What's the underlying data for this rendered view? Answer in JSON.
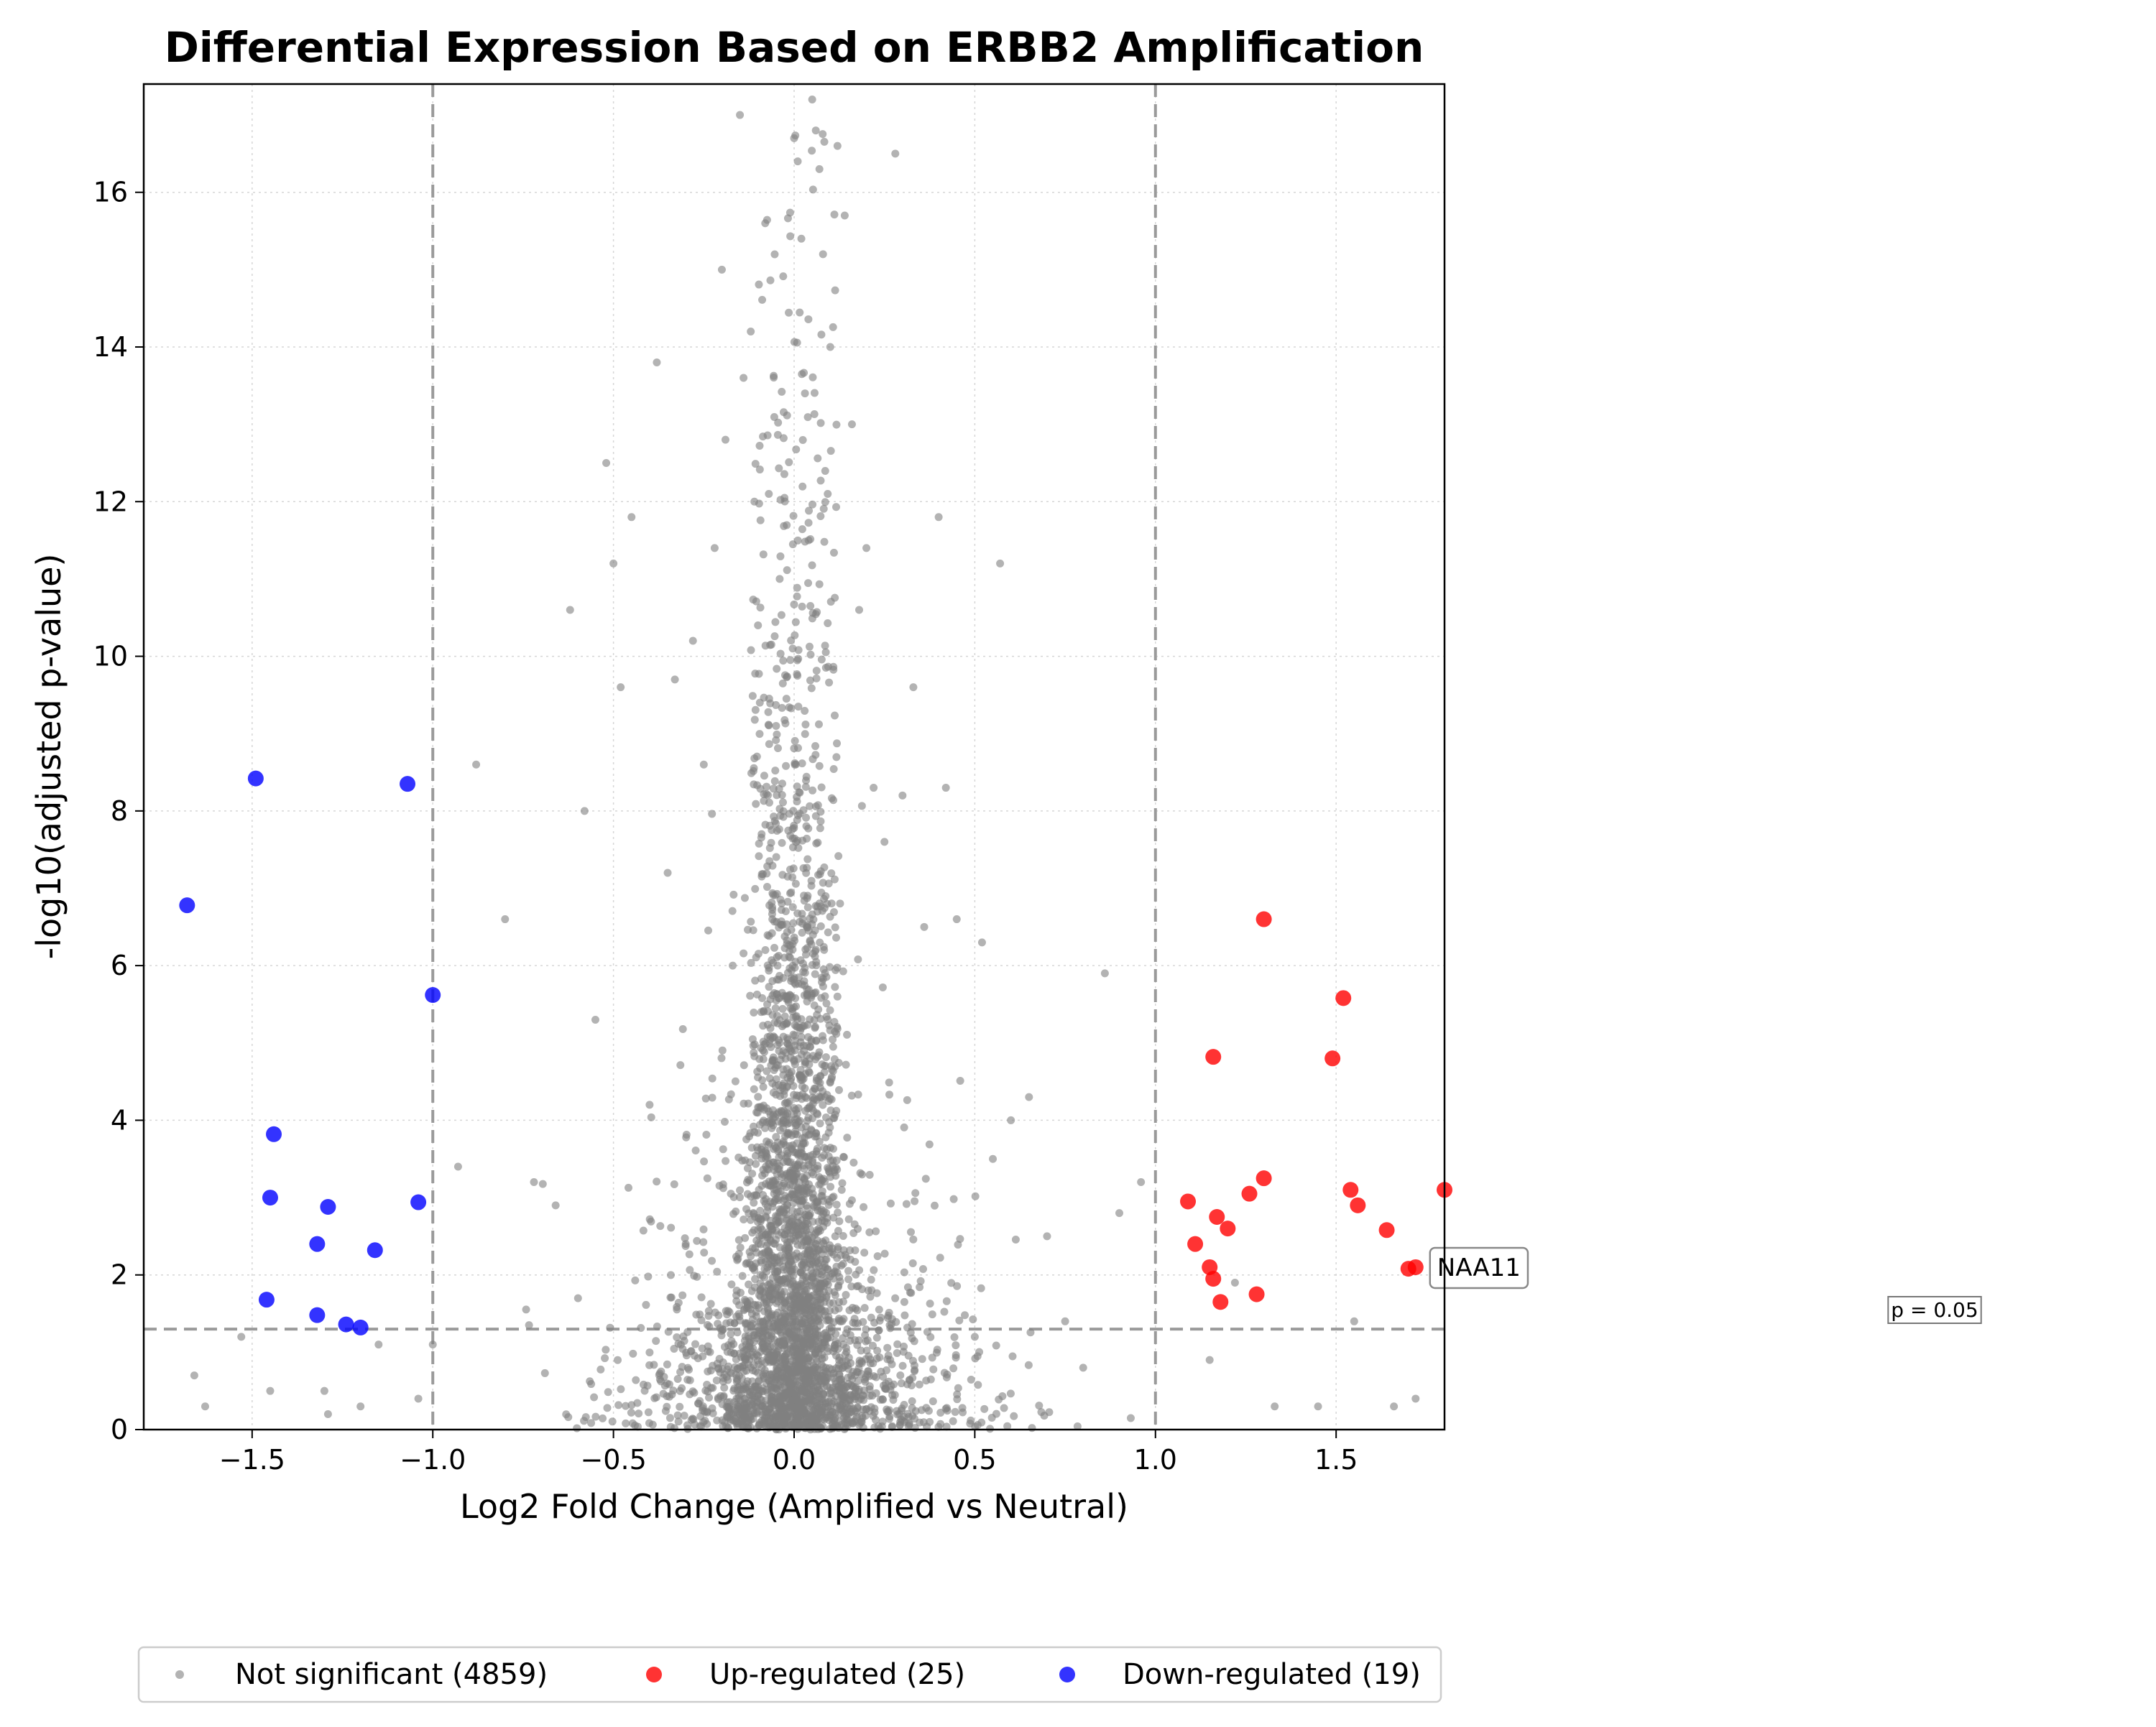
{
  "chart_data": {
    "type": "scatter",
    "title": "Differential Expression Based on ERBB2 Amplification",
    "xlabel": "Log2 Fold Change (Amplified vs Neutral)",
    "ylabel": "-log10(adjusted p-value)",
    "xlim": [
      -1.8,
      1.8
    ],
    "ylim": [
      0,
      17.4
    ],
    "x_ticks": [
      -1.5,
      -1.0,
      -0.5,
      0.0,
      0.5,
      1.0,
      1.5
    ],
    "x_tick_labels": [
      "−1.5",
      "−1.0",
      "−0.5",
      "0.0",
      "0.5",
      "1.0",
      "1.5"
    ],
    "y_ticks": [
      0,
      2,
      4,
      6,
      8,
      10,
      12,
      14,
      16
    ],
    "y_tick_labels": [
      "0",
      "2",
      "4",
      "6",
      "8",
      "10",
      "12",
      "14",
      "16"
    ],
    "grid": true,
    "legend_placement": "bottom-center, below plot",
    "threshold_lines": {
      "fold_change": [
        -1.0,
        1.0
      ],
      "p_value_line_y": 1.3,
      "p_value_label": "p = 0.05"
    },
    "series": [
      {
        "name": "Not significant (4859)",
        "color": "#808080",
        "count_shown": 4859,
        "x": [
          -1.66,
          -1.63,
          -1.53,
          -1.45,
          -1.3,
          -1.29,
          -1.2,
          -1.15,
          -1.04,
          -1.0,
          -0.93,
          -0.88,
          -0.8,
          -0.72,
          -0.66,
          -0.62,
          -0.58,
          -0.55,
          -0.52,
          -0.5,
          -0.48,
          -0.45,
          -0.4,
          -0.38,
          -0.35,
          -0.33,
          -0.3,
          -0.28,
          -0.25,
          -0.22,
          -0.2,
          -0.19,
          -0.17,
          -0.15,
          -0.14,
          -0.12,
          -0.11,
          -0.1,
          -0.09,
          -0.08,
          -0.07,
          -0.06,
          -0.05,
          -0.04,
          -0.03,
          -0.02,
          -0.01,
          0.0,
          0.01,
          0.02,
          0.03,
          0.04,
          0.05,
          0.06,
          0.07,
          0.08,
          0.1,
          0.12,
          0.14,
          0.16,
          0.18,
          0.2,
          0.22,
          0.25,
          0.28,
          0.3,
          0.33,
          0.36,
          0.4,
          0.42,
          0.45,
          0.5,
          0.52,
          0.55,
          0.57,
          0.6,
          0.65,
          0.7,
          0.75,
          0.8,
          0.86,
          0.9,
          0.96,
          1.15,
          1.22,
          1.33,
          1.45,
          1.55,
          1.66,
          1.72
        ],
        "y": [
          0.7,
          0.3,
          1.2,
          0.5,
          0.5,
          0.2,
          0.3,
          1.1,
          0.4,
          1.1,
          3.4,
          8.6,
          6.6,
          3.2,
          2.9,
          10.6,
          8.0,
          5.3,
          12.5,
          11.2,
          9.6,
          11.8,
          4.2,
          13.8,
          7.2,
          9.7,
          2.4,
          10.2,
          8.6,
          11.4,
          15.0,
          12.8,
          6.0,
          17.0,
          13.6,
          14.2,
          12.0,
          10.4,
          7.7,
          15.6,
          12.1,
          5.8,
          9.1,
          11.0,
          4.0,
          3.6,
          2.2,
          16.7,
          16.4,
          15.4,
          13.4,
          11.5,
          17.2,
          16.8,
          16.3,
          15.2,
          14.0,
          16.6,
          15.7,
          13.0,
          10.6,
          11.4,
          8.3,
          7.6,
          16.5,
          8.2,
          9.6,
          6.5,
          11.8,
          8.3,
          6.6,
          1.2,
          6.3,
          3.5,
          11.2,
          4.0,
          4.3,
          2.5,
          1.4,
          0.8,
          5.9,
          2.8,
          3.2,
          0.9,
          1.9,
          0.3,
          0.3,
          1.4,
          0.3,
          0.4
        ],
        "summary": "4859 points concentrated around log2 fold change 0 (mostly within −0.5 to 0.5), -log10 adjusted p-values from 0 to about 17.2; values listed above are representative points"
      },
      {
        "name": "Up-regulated (25)",
        "color": "#ff0000",
        "x": [
          1.09,
          1.11,
          1.15,
          1.16,
          1.16,
          1.17,
          1.18,
          1.2,
          1.26,
          1.28,
          1.3,
          1.3,
          1.49,
          1.52,
          1.54,
          1.56,
          1.64,
          1.7,
          1.72,
          1.8
        ],
        "y": [
          2.95,
          2.4,
          2.1,
          1.95,
          4.82,
          2.75,
          1.65,
          2.6,
          3.05,
          1.75,
          3.25,
          6.6,
          4.8,
          5.58,
          3.1,
          2.9,
          2.58,
          2.08,
          2.1,
          3.1
        ]
      },
      {
        "name": "Down-regulated (19)",
        "color": "#0000ff",
        "x": [
          -1.68,
          -1.49,
          -1.46,
          -1.45,
          -1.44,
          -1.32,
          -1.32,
          -1.29,
          -1.24,
          -1.2,
          -1.16,
          -1.07,
          -1.04,
          -1.0
        ],
        "y": [
          6.78,
          8.42,
          1.68,
          3.0,
          3.82,
          2.4,
          1.48,
          2.88,
          1.36,
          1.32,
          2.32,
          8.35,
          2.94,
          5.62
        ]
      }
    ],
    "annotations": [
      {
        "text": "NAA11",
        "x": 1.72,
        "y": 2.1
      }
    ]
  }
}
